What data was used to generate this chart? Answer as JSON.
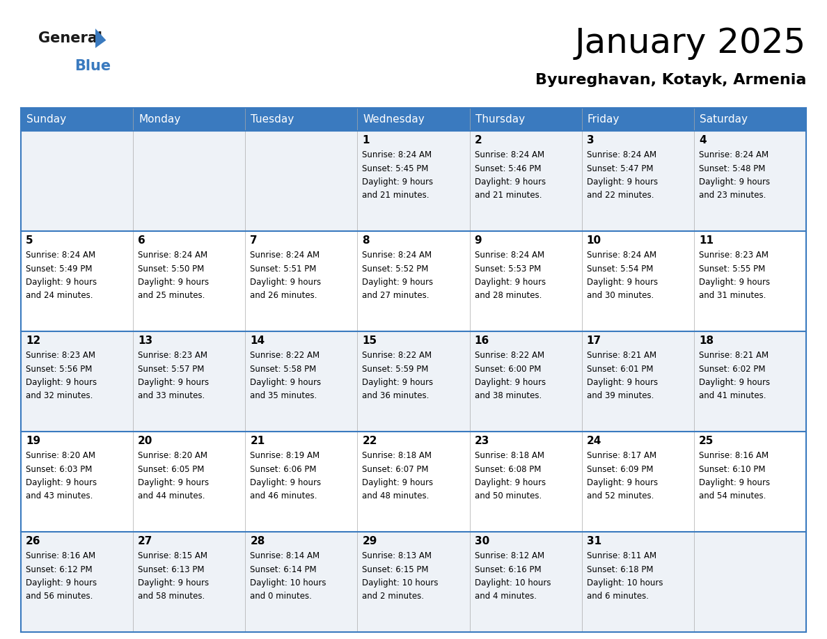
{
  "title": "January 2025",
  "subtitle": "Byureghavan, Kotayk, Armenia",
  "header_bg": "#3a7abf",
  "header_text": "#ffffff",
  "row_bg_odd": "#eef2f7",
  "row_bg_even": "#ffffff",
  "border_color": "#3a7abf",
  "text_color": "#000000",
  "days_of_week": [
    "Sunday",
    "Monday",
    "Tuesday",
    "Wednesday",
    "Thursday",
    "Friday",
    "Saturday"
  ],
  "weeks": [
    [
      {
        "day": null,
        "info": null
      },
      {
        "day": null,
        "info": null
      },
      {
        "day": null,
        "info": null
      },
      {
        "day": 1,
        "info": "Sunrise: 8:24 AM\nSunset: 5:45 PM\nDaylight: 9 hours\nand 21 minutes."
      },
      {
        "day": 2,
        "info": "Sunrise: 8:24 AM\nSunset: 5:46 PM\nDaylight: 9 hours\nand 21 minutes."
      },
      {
        "day": 3,
        "info": "Sunrise: 8:24 AM\nSunset: 5:47 PM\nDaylight: 9 hours\nand 22 minutes."
      },
      {
        "day": 4,
        "info": "Sunrise: 8:24 AM\nSunset: 5:48 PM\nDaylight: 9 hours\nand 23 minutes."
      }
    ],
    [
      {
        "day": 5,
        "info": "Sunrise: 8:24 AM\nSunset: 5:49 PM\nDaylight: 9 hours\nand 24 minutes."
      },
      {
        "day": 6,
        "info": "Sunrise: 8:24 AM\nSunset: 5:50 PM\nDaylight: 9 hours\nand 25 minutes."
      },
      {
        "day": 7,
        "info": "Sunrise: 8:24 AM\nSunset: 5:51 PM\nDaylight: 9 hours\nand 26 minutes."
      },
      {
        "day": 8,
        "info": "Sunrise: 8:24 AM\nSunset: 5:52 PM\nDaylight: 9 hours\nand 27 minutes."
      },
      {
        "day": 9,
        "info": "Sunrise: 8:24 AM\nSunset: 5:53 PM\nDaylight: 9 hours\nand 28 minutes."
      },
      {
        "day": 10,
        "info": "Sunrise: 8:24 AM\nSunset: 5:54 PM\nDaylight: 9 hours\nand 30 minutes."
      },
      {
        "day": 11,
        "info": "Sunrise: 8:23 AM\nSunset: 5:55 PM\nDaylight: 9 hours\nand 31 minutes."
      }
    ],
    [
      {
        "day": 12,
        "info": "Sunrise: 8:23 AM\nSunset: 5:56 PM\nDaylight: 9 hours\nand 32 minutes."
      },
      {
        "day": 13,
        "info": "Sunrise: 8:23 AM\nSunset: 5:57 PM\nDaylight: 9 hours\nand 33 minutes."
      },
      {
        "day": 14,
        "info": "Sunrise: 8:22 AM\nSunset: 5:58 PM\nDaylight: 9 hours\nand 35 minutes."
      },
      {
        "day": 15,
        "info": "Sunrise: 8:22 AM\nSunset: 5:59 PM\nDaylight: 9 hours\nand 36 minutes."
      },
      {
        "day": 16,
        "info": "Sunrise: 8:22 AM\nSunset: 6:00 PM\nDaylight: 9 hours\nand 38 minutes."
      },
      {
        "day": 17,
        "info": "Sunrise: 8:21 AM\nSunset: 6:01 PM\nDaylight: 9 hours\nand 39 minutes."
      },
      {
        "day": 18,
        "info": "Sunrise: 8:21 AM\nSunset: 6:02 PM\nDaylight: 9 hours\nand 41 minutes."
      }
    ],
    [
      {
        "day": 19,
        "info": "Sunrise: 8:20 AM\nSunset: 6:03 PM\nDaylight: 9 hours\nand 43 minutes."
      },
      {
        "day": 20,
        "info": "Sunrise: 8:20 AM\nSunset: 6:05 PM\nDaylight: 9 hours\nand 44 minutes."
      },
      {
        "day": 21,
        "info": "Sunrise: 8:19 AM\nSunset: 6:06 PM\nDaylight: 9 hours\nand 46 minutes."
      },
      {
        "day": 22,
        "info": "Sunrise: 8:18 AM\nSunset: 6:07 PM\nDaylight: 9 hours\nand 48 minutes."
      },
      {
        "day": 23,
        "info": "Sunrise: 8:18 AM\nSunset: 6:08 PM\nDaylight: 9 hours\nand 50 minutes."
      },
      {
        "day": 24,
        "info": "Sunrise: 8:17 AM\nSunset: 6:09 PM\nDaylight: 9 hours\nand 52 minutes."
      },
      {
        "day": 25,
        "info": "Sunrise: 8:16 AM\nSunset: 6:10 PM\nDaylight: 9 hours\nand 54 minutes."
      }
    ],
    [
      {
        "day": 26,
        "info": "Sunrise: 8:16 AM\nSunset: 6:12 PM\nDaylight: 9 hours\nand 56 minutes."
      },
      {
        "day": 27,
        "info": "Sunrise: 8:15 AM\nSunset: 6:13 PM\nDaylight: 9 hours\nand 58 minutes."
      },
      {
        "day": 28,
        "info": "Sunrise: 8:14 AM\nSunset: 6:14 PM\nDaylight: 10 hours\nand 0 minutes."
      },
      {
        "day": 29,
        "info": "Sunrise: 8:13 AM\nSunset: 6:15 PM\nDaylight: 10 hours\nand 2 minutes."
      },
      {
        "day": 30,
        "info": "Sunrise: 8:12 AM\nSunset: 6:16 PM\nDaylight: 10 hours\nand 4 minutes."
      },
      {
        "day": 31,
        "info": "Sunrise: 8:11 AM\nSunset: 6:18 PM\nDaylight: 10 hours\nand 6 minutes."
      },
      {
        "day": null,
        "info": null
      }
    ]
  ],
  "logo_general_color": "#1a1a1a",
  "logo_blue_color": "#3a7abf",
  "logo_triangle_color": "#3a7abf",
  "fig_width": 11.88,
  "fig_height": 9.18,
  "dpi": 100
}
